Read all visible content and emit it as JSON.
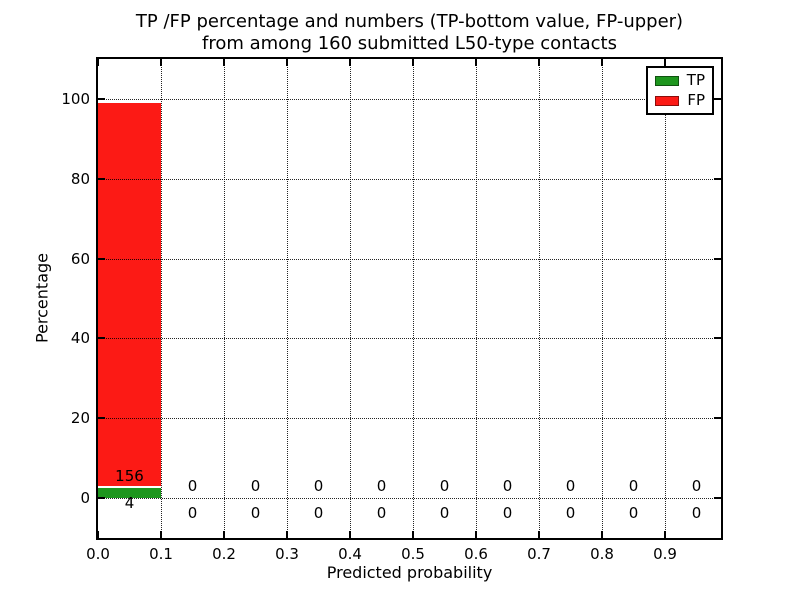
{
  "chart_data": {
    "type": "bar",
    "stacked": true,
    "title_line1": "TP /FP percentage and numbers (TP-bottom value, FP-upper)",
    "title_line2": "from among 160 submitted L50-type contacts",
    "xlabel": "Predicted probability",
    "ylabel": "Percentage",
    "xlim": [
      0.0,
      1.0
    ],
    "ylim": [
      -10,
      110
    ],
    "xticks": [
      "0.0",
      "0.1",
      "0.2",
      "0.3",
      "0.4",
      "0.5",
      "0.6",
      "0.7",
      "0.8",
      "0.9"
    ],
    "yticks": [
      "0",
      "20",
      "40",
      "60",
      "80",
      "100"
    ],
    "grid": "dotted",
    "bin_edges": [
      0.0,
      0.1,
      0.2,
      0.3,
      0.4,
      0.5,
      0.6,
      0.7,
      0.8,
      0.9,
      1.0
    ],
    "total_label": "160",
    "series": [
      {
        "name": "TP",
        "color": "#1e961e",
        "counts": [
          4,
          0,
          0,
          0,
          0,
          0,
          0,
          0,
          0,
          0
        ],
        "percentages": [
          2.5,
          0,
          0,
          0,
          0,
          0,
          0,
          0,
          0,
          0
        ]
      },
      {
        "name": "FP",
        "color": "#fc1a15",
        "counts": [
          156,
          0,
          0,
          0,
          0,
          0,
          0,
          0,
          0,
          0
        ],
        "percentages": [
          97.5,
          0,
          0,
          0,
          0,
          0,
          0,
          0,
          0,
          0
        ]
      }
    ],
    "legend": {
      "position": "upper right"
    }
  }
}
